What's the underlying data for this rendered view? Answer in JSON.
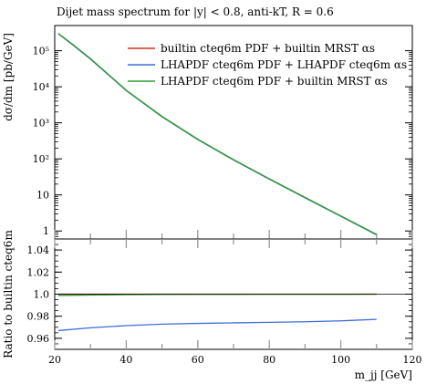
{
  "chart_data": [
    {
      "type": "line",
      "title": "Dijet mass spectrum for |y| < 0.8, anti-kT, R = 0.6",
      "ylabel": "dσ/dm [pb/GeV]",
      "yscale": "log",
      "xlim": [
        20,
        120
      ],
      "ylim": [
        0.6,
        500000
      ],
      "ytick_labels": [
        "1",
        "10",
        "10²",
        "10³",
        "10⁴",
        "10⁵"
      ],
      "yticks": [
        1,
        10,
        100,
        1000,
        10000,
        100000
      ],
      "legend_position": "top-right",
      "series": [
        {
          "name": "builtin cteq6m PDF + builtin MRST αs",
          "color": "#d62d20",
          "x": [
            21,
            25,
            30,
            35,
            40,
            50,
            60,
            70,
            80,
            90,
            100,
            110
          ],
          "y": [
            300000,
            150000,
            60000,
            22000,
            8000,
            1500,
            350,
            95,
            28,
            8.5,
            2.6,
            0.8
          ]
        },
        {
          "name": "LHAPDF cteq6m PDF + LHAPDF cteq6m αs",
          "color": "#3a6fd8",
          "x": [
            21,
            25,
            30,
            35,
            40,
            50,
            60,
            70,
            80,
            90,
            100,
            110
          ],
          "y": [
            293000,
            146000,
            58500,
            21500,
            7800,
            1465,
            342,
            93,
            27.3,
            8.3,
            2.54,
            0.78
          ]
        },
        {
          "name": "LHAPDF cteq6m PDF + builtin MRST αs",
          "color": "#2ca02c",
          "x": [
            21,
            25,
            30,
            35,
            40,
            50,
            60,
            70,
            80,
            90,
            100,
            110
          ],
          "y": [
            300000,
            150000,
            60000,
            22000,
            8000,
            1500,
            350,
            95,
            28,
            8.5,
            2.6,
            0.8
          ]
        }
      ]
    },
    {
      "type": "line",
      "xlabel": "m_jj [GeV]",
      "ylabel": "Ratio to builtin cteq6m",
      "xlim": [
        20,
        120
      ],
      "ylim": [
        0.95,
        1.05
      ],
      "xticks": [
        20,
        40,
        60,
        80,
        100,
        120
      ],
      "xtick_labels": [
        "20",
        "40",
        "60",
        "80",
        "100",
        "120"
      ],
      "yticks": [
        0.96,
        0.98,
        1.0,
        1.02,
        1.04
      ],
      "ytick_labels": [
        "0.96",
        "0.98",
        "1.0",
        "1.02",
        "1.04"
      ],
      "series": [
        {
          "color": "#d62d20",
          "x": [
            21,
            110
          ],
          "y": [
            1.0,
            1.0
          ]
        },
        {
          "color": "#3a6fd8",
          "x": [
            21,
            30,
            40,
            50,
            60,
            70,
            80,
            90,
            100,
            110
          ],
          "y": [
            0.967,
            0.9695,
            0.9715,
            0.9728,
            0.9735,
            0.974,
            0.9745,
            0.975,
            0.9758,
            0.9772
          ]
        },
        {
          "color": "#2ca02c",
          "x": [
            21,
            30,
            40,
            50,
            60,
            70,
            80,
            90,
            100,
            110
          ],
          "y": [
            0.9988,
            0.9992,
            0.9995,
            0.9997,
            0.9998,
            0.9998,
            0.9999,
            0.9999,
            0.9999,
            1.0
          ]
        }
      ]
    }
  ]
}
